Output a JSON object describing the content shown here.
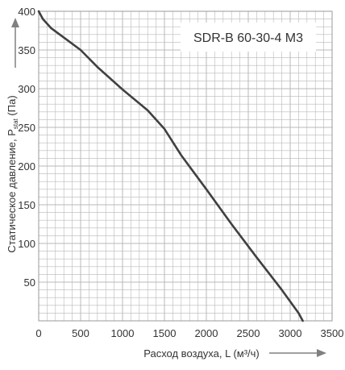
{
  "chart_data": {
    "type": "line",
    "title": "SDR-B 60-30-4 M3",
    "xlabel": "Расход воздуха, L (м³/ч)",
    "ylabel": "Статическое давление, Pstat (Па)",
    "ylabel_main": "Статическое давление, P",
    "ylabel_sub": "stat",
    "ylabel_tail": " (Па)",
    "xlim": [
      0,
      3500
    ],
    "ylim": [
      0,
      400
    ],
    "x_ticks": [
      "0",
      "500",
      "1000",
      "1500",
      "2000",
      "2500",
      "3000",
      "3500"
    ],
    "y_ticks": [
      "50",
      "100",
      "150",
      "200",
      "250",
      "300",
      "350",
      "400"
    ],
    "grid": true,
    "series": [
      {
        "x": [
          0,
          50,
          150,
          300,
          500,
          700,
          1000,
          1300,
          1500,
          1700,
          2000,
          2300,
          2600,
          2900,
          3100,
          3150
        ],
        "y": [
          400,
          390,
          378,
          366,
          350,
          328,
          299,
          272,
          248,
          214,
          170,
          125,
          82,
          40,
          10,
          0
        ]
      }
    ],
    "colors": {
      "line": "#404040",
      "grid": "#b8b8b8",
      "axis_arrow": "#808080",
      "text": "#333333"
    }
  }
}
